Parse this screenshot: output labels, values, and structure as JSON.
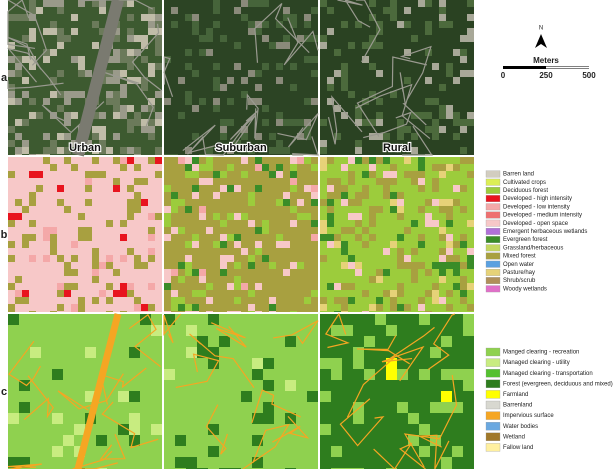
{
  "rows": [
    "a",
    "b",
    "c"
  ],
  "columns": [
    "Urban",
    "Suburban",
    "Rural"
  ],
  "north": "N",
  "scale": {
    "title": "Meters",
    "labels": [
      "0",
      "250",
      "500"
    ]
  },
  "legend_b": [
    {
      "label": "Barren land",
      "color": "#d2cdc0"
    },
    {
      "label": "Cultivated crops",
      "color": "#dcee55"
    },
    {
      "label": "Deciduous forest",
      "color": "#9ccc3c"
    },
    {
      "label": "Developed - high intensity",
      "color": "#e8141e"
    },
    {
      "label": "Developed - low intensity",
      "color": "#f4a8a8"
    },
    {
      "label": "Developed - medium intensity",
      "color": "#ee7070"
    },
    {
      "label": "Developed - open space",
      "color": "#f7c8c8"
    },
    {
      "label": "Emergent herbaceous wetlands",
      "color": "#b070d8"
    },
    {
      "label": "Evergreen forest",
      "color": "#3a8c28"
    },
    {
      "label": "Grassland/herbaceous",
      "color": "#c4d860"
    },
    {
      "label": "Mixed forest",
      "color": "#a8a040"
    },
    {
      "label": "Open water",
      "color": "#5aa0e0"
    },
    {
      "label": "Pasture/hay",
      "color": "#e6d278"
    },
    {
      "label": "Shrub/scrub",
      "color": "#b0905a"
    },
    {
      "label": "Woody wetlands",
      "color": "#e070c8"
    }
  ],
  "legend_c": [
    {
      "label": "Manged clearing - recreation",
      "color": "#8fd14f"
    },
    {
      "label": "Managed clearing - utility",
      "color": "#c8ec80"
    },
    {
      "label": "Managed clearing - transportation",
      "color": "#55c030"
    },
    {
      "label": "Forest (evergreen, deciduous and mixed)",
      "color": "#2e7d1e"
    },
    {
      "label": "Farmland",
      "color": "#ffff00"
    },
    {
      "label": "Barrenland",
      "color": "#d8d8d0"
    },
    {
      "label": "Impervious surface",
      "color": "#f5a623"
    },
    {
      "label": "Water bodies",
      "color": "#6aa8e0"
    },
    {
      "label": "Wetland",
      "color": "#a0782a"
    },
    {
      "label": "Fallow land",
      "color": "#fff0a0"
    }
  ]
}
